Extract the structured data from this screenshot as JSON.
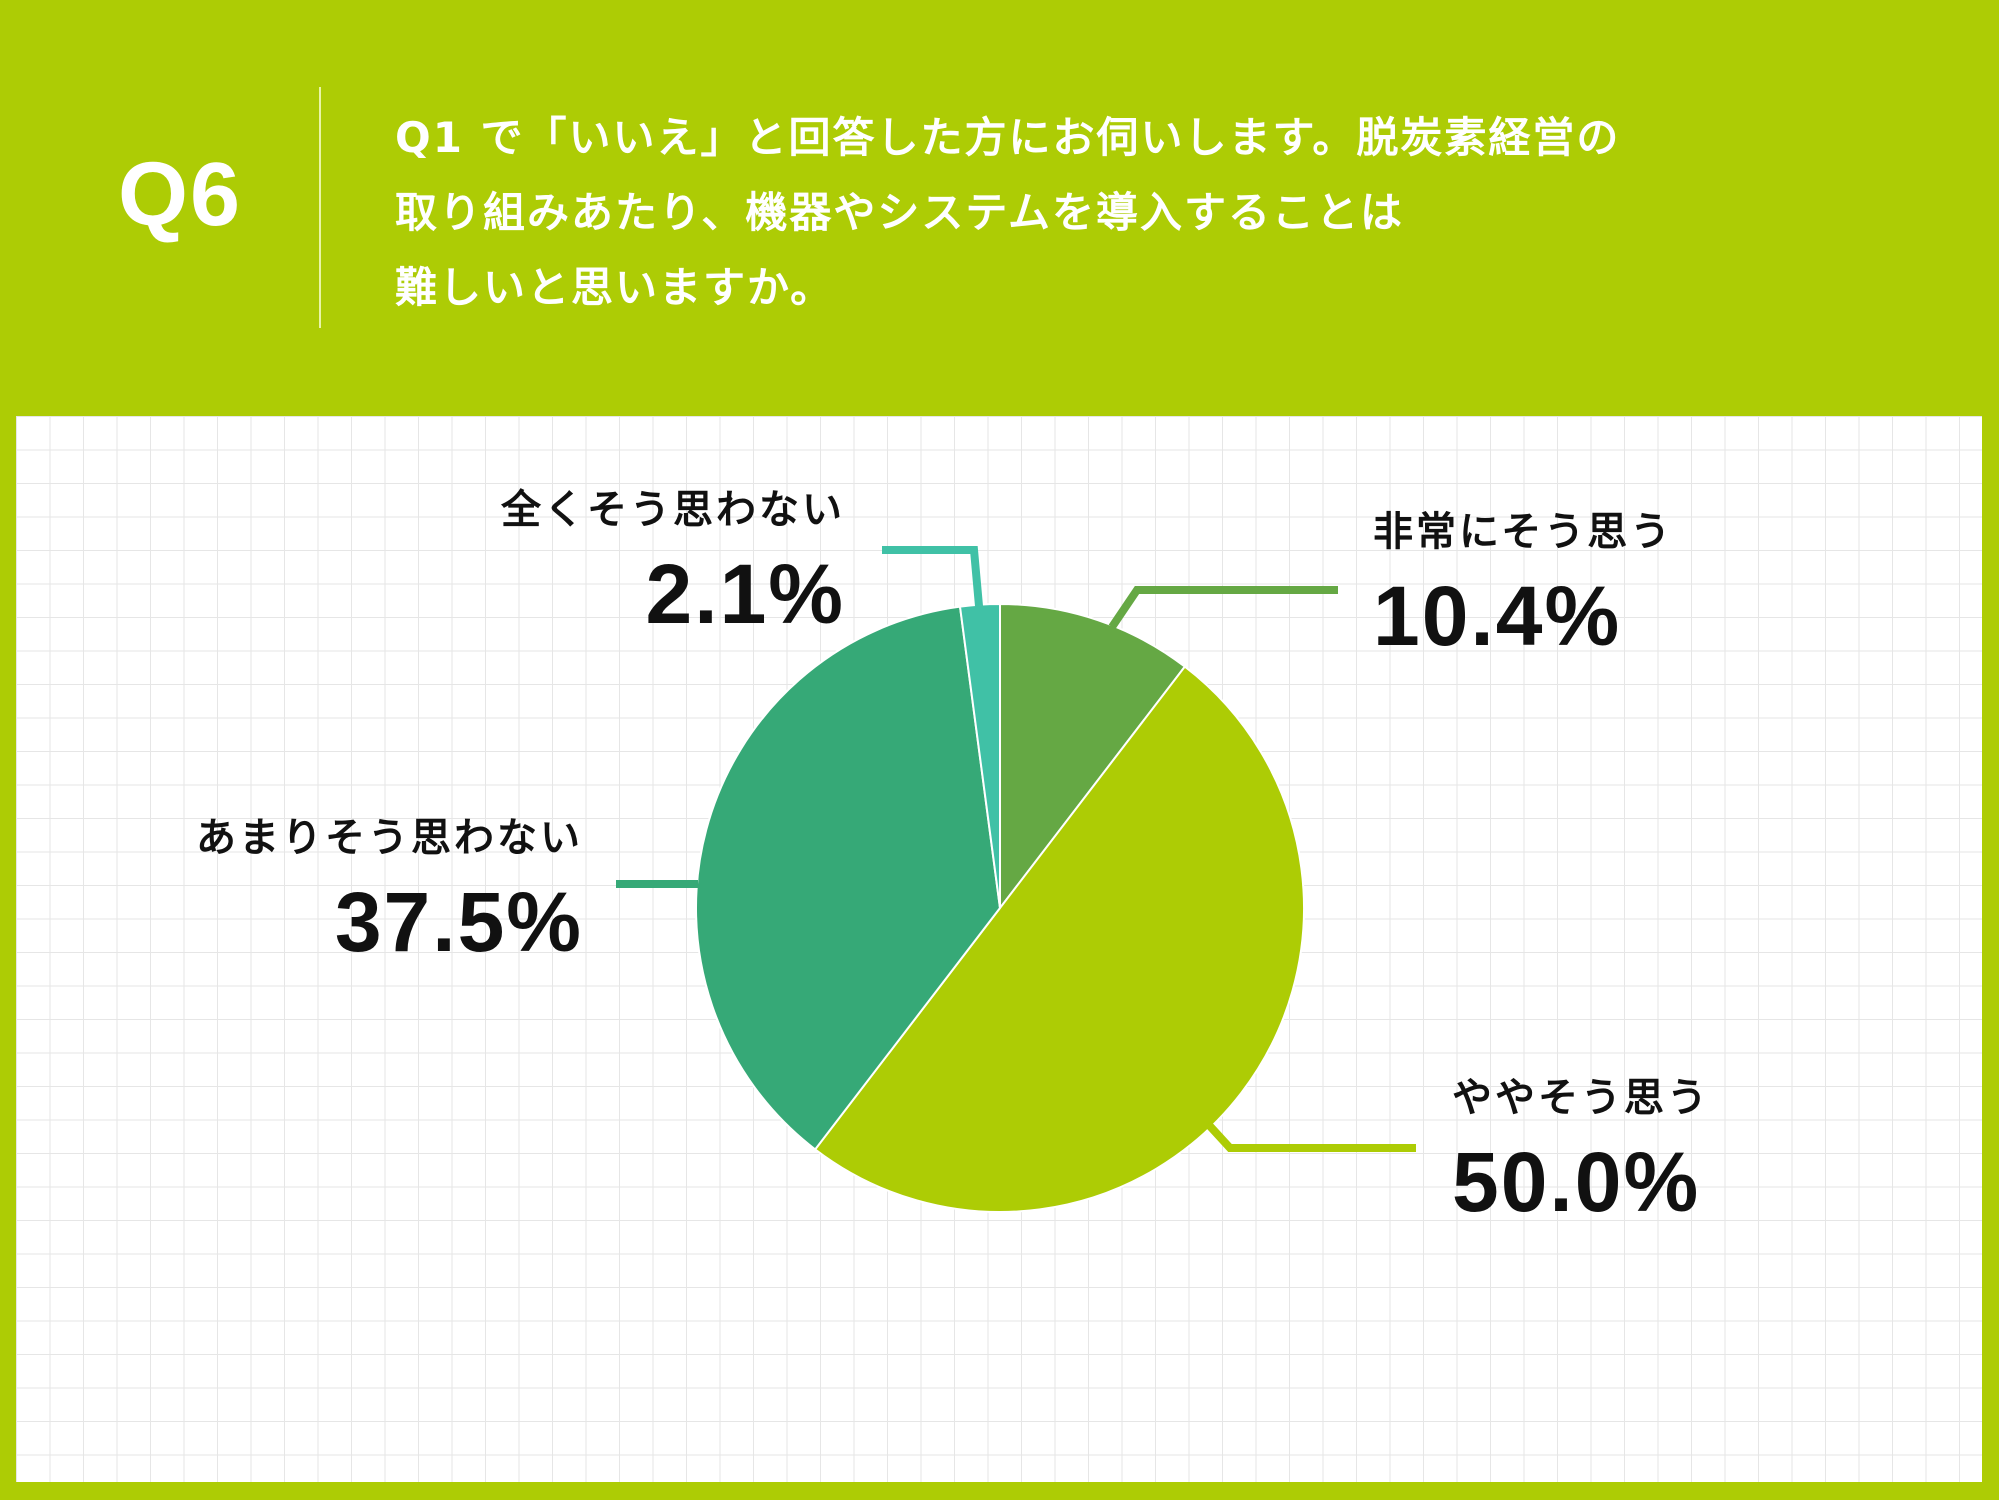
{
  "header": {
    "question_number": "Q6",
    "question_lines": [
      "Q1 で「いいえ」と回答した方にお伺いします。脱炭素経営の",
      "取り組みあたり、機器やシステムを導入することは",
      "難しいと思いますか。"
    ]
  },
  "colors": {
    "background": "#ADCC05",
    "panel": "#FFFFFF",
    "grid": "#E6E6E6"
  },
  "chart_data": {
    "type": "pie",
    "title": "Q1 で「いいえ」と回答した方にお伺いします。脱炭素経営の取り組みあたり、機器やシステムを導入することは難しいと思いますか。",
    "start_angle": "12 o'clock, clockwise",
    "categories": [
      "非常にそう思う",
      "ややそう思う",
      "あまりそう思わない",
      "全くそう思わない"
    ],
    "values": [
      10.4,
      50.0,
      37.5,
      2.1
    ],
    "labels": [
      "10.4%",
      "50.0%",
      "37.5%",
      "2.1%"
    ],
    "colors": [
      "#65A844",
      "#ADCC05",
      "#36A977",
      "#40C1A6"
    ],
    "legend": "none (callout labels)"
  },
  "labels": {
    "very_much": {
      "category": "非常にそう思う",
      "percent": "10.4%"
    },
    "somewhat": {
      "category": "ややそう思う",
      "percent": "50.0%"
    },
    "not_much": {
      "category": "あまりそう思わない",
      "percent": "37.5%"
    },
    "not_at_all": {
      "category": "全くそう思わない",
      "percent": "2.1%"
    }
  }
}
